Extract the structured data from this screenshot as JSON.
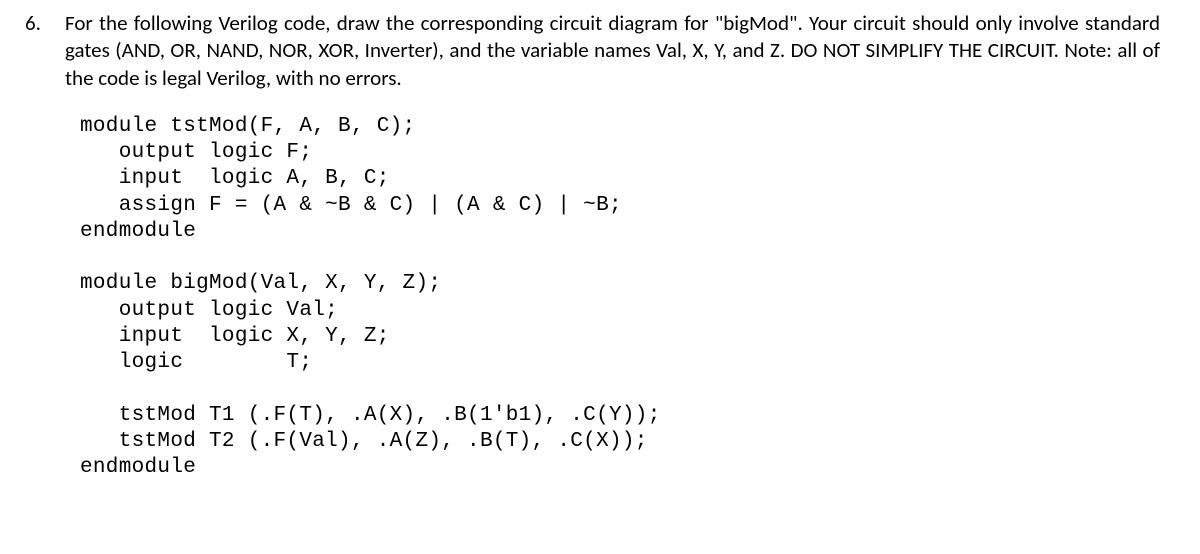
{
  "question": {
    "number": "6.",
    "text": "For the following Verilog code, draw the corresponding circuit diagram for \"bigMod\".  Your circuit should only involve standard gates (AND, OR, NAND, NOR, XOR, Inverter), and the variable names Val, X, Y, and Z.  DO NOT SIMPLIFY THE CIRCUIT.  Note: all of the code is legal Verilog, with no errors."
  },
  "code": {
    "lines": [
      "module tstMod(F, A, B, C);",
      "   output logic F;",
      "   input  logic A, B, C;",
      "   assign F = (A & ~B & C) | (A & C) | ~B;",
      "endmodule",
      "",
      "module bigMod(Val, X, Y, Z);",
      "   output logic Val;",
      "   input  logic X, Y, Z;",
      "   logic        T;",
      "",
      "   tstMod T1 (.F(T), .A(X), .B(1'b1), .C(Y));",
      "   tstMod T2 (.F(Val), .A(Z), .B(T), .C(X));",
      "endmodule"
    ]
  },
  "style": {
    "body_font": "Calibri, Arial, sans-serif",
    "code_font": "Courier New, monospace",
    "body_font_size_pt": 16,
    "code_font_size_pt": 16,
    "text_color": "#000000",
    "background_color": "#ffffff"
  }
}
